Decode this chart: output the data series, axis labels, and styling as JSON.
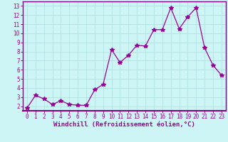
{
  "x": [
    0,
    1,
    2,
    3,
    4,
    5,
    6,
    7,
    8,
    9,
    10,
    11,
    12,
    13,
    14,
    15,
    16,
    17,
    18,
    19,
    20,
    21,
    22,
    23
  ],
  "y": [
    1.8,
    3.2,
    2.8,
    2.2,
    2.6,
    2.2,
    2.1,
    2.1,
    3.8,
    4.4,
    8.2,
    6.8,
    7.6,
    8.7,
    8.6,
    10.4,
    10.4,
    12.8,
    10.5,
    11.8,
    12.8,
    8.4,
    6.5,
    5.4
  ],
  "line_color": "#990099",
  "marker": "*",
  "marker_size": 4,
  "bg_color": "#cef5f5",
  "grid_color": "#aadddd",
  "xlabel": "Windchill (Refroidissement éolien,°C)",
  "xlim": [
    -0.5,
    23.5
  ],
  "ylim": [
    1.5,
    13.5
  ],
  "yticks": [
    2,
    3,
    4,
    5,
    6,
    7,
    8,
    9,
    10,
    11,
    12,
    13
  ],
  "xticks": [
    0,
    1,
    2,
    3,
    4,
    5,
    6,
    7,
    8,
    9,
    10,
    11,
    12,
    13,
    14,
    15,
    16,
    17,
    18,
    19,
    20,
    21,
    22,
    23
  ],
  "tick_fontsize": 5.5,
  "xlabel_fontsize": 6.5,
  "spine_color": "#880088"
}
